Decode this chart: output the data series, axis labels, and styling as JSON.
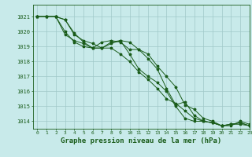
{
  "bg_color": "#c8eaea",
  "grid_color": "#a0c8c8",
  "line_color": "#1a5c1a",
  "title": "Graphe pression niveau de la mer (hPa)",
  "title_fontsize": 6.5,
  "xlim": [
    -0.5,
    23
  ],
  "ylim": [
    1013.5,
    1021.8
  ],
  "yticks": [
    1014,
    1015,
    1016,
    1017,
    1018,
    1019,
    1020,
    1021
  ],
  "xticks": [
    0,
    1,
    2,
    3,
    4,
    5,
    6,
    7,
    8,
    9,
    10,
    11,
    12,
    13,
    14,
    15,
    16,
    17,
    18,
    19,
    20,
    21,
    22,
    23
  ],
  "series": [
    [
      1021.0,
      1021.0,
      1021.0,
      1019.8,
      1019.4,
      1019.2,
      1018.9,
      1018.9,
      1019.3,
      1019.4,
      1019.3,
      1018.8,
      1018.2,
      1017.5,
      1016.2,
      1015.1,
      1015.3,
      1014.4,
      1014.0,
      1013.9,
      1013.7,
      1013.8,
      1013.8,
      1013.7
    ],
    [
      1021.0,
      1021.0,
      1021.0,
      1020.8,
      1019.8,
      1019.4,
      1019.2,
      1018.9,
      1019.2,
      1019.4,
      1018.5,
      1017.5,
      1017.0,
      1016.6,
      1016.0,
      1015.0,
      1014.2,
      1014.0,
      1014.0,
      1013.9,
      1013.7,
      1013.8,
      1013.9,
      1013.7
    ],
    [
      1021.0,
      1021.0,
      1021.0,
      1020.8,
      1019.9,
      1019.3,
      1018.9,
      1018.9,
      1018.9,
      1018.5,
      1018.0,
      1017.3,
      1016.8,
      1016.2,
      1015.5,
      1015.2,
      1014.7,
      1014.2,
      1014.0,
      1013.9,
      1013.7,
      1013.8,
      1013.9,
      1013.7
    ],
    [
      1021.0,
      1021.0,
      1021.0,
      1020.0,
      1019.3,
      1019.0,
      1018.9,
      1019.3,
      1019.4,
      1019.3,
      1018.8,
      1018.8,
      1018.5,
      1017.7,
      1017.0,
      1016.3,
      1015.1,
      1014.8,
      1014.2,
      1014.0,
      1013.7,
      1013.7,
      1014.0,
      1013.8
    ]
  ],
  "marker": "*",
  "marker_size": 2.5,
  "line_width": 0.7
}
